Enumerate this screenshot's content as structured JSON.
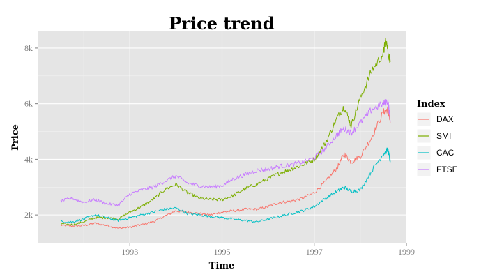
{
  "chart_data": {
    "type": "line",
    "title": "Price trend",
    "xlabel": "Time",
    "ylabel": "Price",
    "xlim": [
      1991.0,
      1999.0
    ],
    "ylim": [
      1000,
      8600
    ],
    "x_ticks": [
      1993,
      1995,
      1997,
      1999
    ],
    "x_tick_labels": [
      "1993",
      "1995",
      "1997",
      "1999"
    ],
    "y_ticks": [
      2000,
      4000,
      6000,
      8000
    ],
    "y_tick_labels": [
      "2k",
      "4k",
      "6k",
      "8k"
    ],
    "grid": true,
    "legend": {
      "title": "Index",
      "placement": "right"
    },
    "series": [
      {
        "name": "DAX",
        "color": "#F8766D",
        "x": [
          1991.5,
          1991.75,
          1992.0,
          1992.25,
          1992.5,
          1992.75,
          1993.0,
          1993.25,
          1993.5,
          1993.75,
          1994.0,
          1994.25,
          1994.5,
          1994.75,
          1995.0,
          1995.25,
          1995.5,
          1995.75,
          1996.0,
          1996.25,
          1996.5,
          1996.75,
          1997.0,
          1997.25,
          1997.5,
          1997.65,
          1997.8,
          1998.0,
          1998.25,
          1998.5,
          1998.6,
          1998.65
        ],
        "values": [
          1630,
          1600,
          1620,
          1700,
          1620,
          1520,
          1560,
          1650,
          1750,
          1950,
          2150,
          2100,
          2050,
          2000,
          2100,
          2150,
          2200,
          2200,
          2300,
          2450,
          2500,
          2600,
          2800,
          3200,
          3700,
          4200,
          3900,
          4100,
          4800,
          5700,
          5800,
          5300
        ]
      },
      {
        "name": "SMI",
        "color": "#7CAE00",
        "x": [
          1991.5,
          1991.75,
          1992.0,
          1992.25,
          1992.5,
          1992.75,
          1993.0,
          1993.25,
          1993.5,
          1993.75,
          1994.0,
          1994.25,
          1994.5,
          1994.75,
          1995.0,
          1995.25,
          1995.5,
          1995.75,
          1996.0,
          1996.25,
          1996.5,
          1996.75,
          1997.0,
          1997.25,
          1997.5,
          1997.65,
          1997.8,
          1998.0,
          1998.25,
          1998.5,
          1998.55,
          1998.65
        ],
        "values": [
          1680,
          1650,
          1750,
          1900,
          1900,
          1850,
          2100,
          2300,
          2550,
          2900,
          3100,
          2800,
          2600,
          2550,
          2550,
          2700,
          2950,
          3100,
          3300,
          3500,
          3650,
          3800,
          4000,
          4600,
          5500,
          5900,
          5200,
          6200,
          7200,
          7800,
          8300,
          7500
        ]
      },
      {
        "name": "CAC",
        "color": "#00BFC4",
        "x": [
          1991.5,
          1991.75,
          1992.0,
          1992.25,
          1992.5,
          1992.75,
          1993.0,
          1993.25,
          1993.5,
          1993.75,
          1994.0,
          1994.25,
          1994.5,
          1994.75,
          1995.0,
          1995.25,
          1995.5,
          1995.75,
          1996.0,
          1996.25,
          1996.5,
          1996.75,
          1997.0,
          1997.25,
          1997.5,
          1997.65,
          1997.8,
          1998.0,
          1998.25,
          1998.5,
          1998.6,
          1998.65
        ],
        "values": [
          1760,
          1750,
          1850,
          2000,
          1900,
          1800,
          1900,
          2000,
          2100,
          2200,
          2250,
          2050,
          2000,
          1950,
          1900,
          1850,
          1800,
          1750,
          1850,
          1950,
          2050,
          2150,
          2300,
          2600,
          2850,
          3000,
          2850,
          2900,
          3600,
          4200,
          4350,
          3900
        ]
      },
      {
        "name": "FTSE",
        "color": "#C77CFF",
        "x": [
          1991.5,
          1991.75,
          1992.0,
          1992.25,
          1992.5,
          1992.75,
          1993.0,
          1993.25,
          1993.5,
          1993.75,
          1994.0,
          1994.25,
          1994.5,
          1994.75,
          1995.0,
          1995.25,
          1995.5,
          1995.75,
          1996.0,
          1996.25,
          1996.5,
          1996.75,
          1997.0,
          1997.25,
          1997.5,
          1997.65,
          1997.8,
          1998.0,
          1998.25,
          1998.5,
          1998.6,
          1998.65
        ],
        "values": [
          2500,
          2600,
          2450,
          2550,
          2400,
          2350,
          2750,
          2900,
          3000,
          3200,
          3400,
          3150,
          3050,
          3000,
          3050,
          3300,
          3450,
          3600,
          3650,
          3750,
          3800,
          3900,
          4050,
          4400,
          4900,
          5100,
          4950,
          5300,
          5800,
          6000,
          6100,
          5400
        ]
      }
    ]
  }
}
